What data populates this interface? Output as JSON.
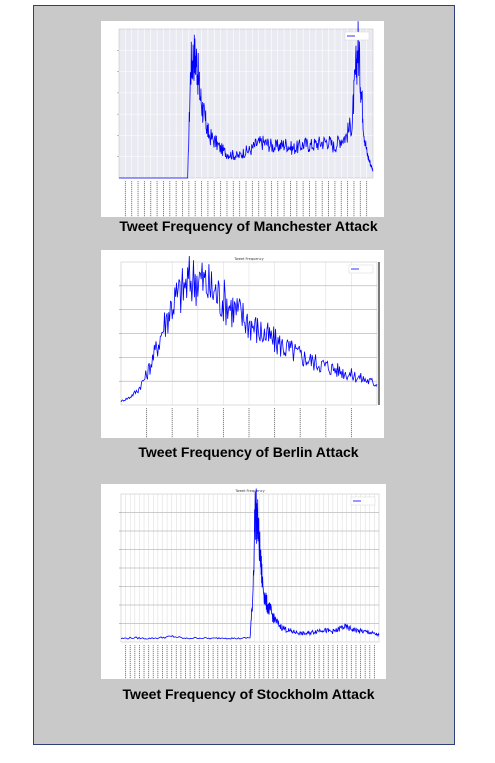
{
  "figure": {
    "captions": [
      "Tweet Frequency of Manchester Attack",
      "Tweet Frequency of Berlin Attack",
      "Tweet Frequency of Stockholm Attack"
    ]
  },
  "chart_data": [
    {
      "type": "line",
      "title": "",
      "legend_position": "top-right",
      "line_color": "#0000ff",
      "background": "#eaeaf2",
      "grid": true,
      "ytick_count": 7,
      "xtick_count": 40,
      "x": [
        0,
        2,
        4,
        6,
        8,
        10,
        12,
        14,
        16,
        18,
        20,
        22,
        23,
        24,
        25,
        26,
        27,
        28,
        29,
        30,
        32,
        34,
        36,
        38,
        40,
        42,
        44,
        46,
        48,
        50,
        52,
        54,
        56,
        58,
        60,
        62,
        64,
        66,
        68,
        70,
        72,
        74,
        76,
        78,
        79,
        80,
        81,
        82,
        83,
        84,
        85
      ],
      "values": [
        0,
        0,
        0,
        0,
        0,
        0,
        0,
        0,
        0,
        0,
        0,
        0,
        0,
        360,
        400,
        380,
        280,
        220,
        180,
        140,
        120,
        95,
        80,
        75,
        70,
        85,
        90,
        110,
        115,
        110,
        100,
        105,
        110,
        95,
        100,
        110,
        105,
        110,
        115,
        120,
        100,
        125,
        135,
        180,
        320,
        430,
        300,
        150,
        80,
        50,
        25
      ]
    },
    {
      "type": "line",
      "title": "Tweet Frequency",
      "legend_position": "top-right",
      "line_color": "#0000ff",
      "background": "#ffffff",
      "grid": true,
      "ytick_count": 6,
      "xtick_count": 10,
      "x": [
        0,
        3,
        6,
        9,
        12,
        15,
        18,
        21,
        24,
        27,
        30,
        33,
        36,
        39,
        42,
        45,
        48,
        51,
        54,
        57,
        60,
        63,
        66,
        69,
        72,
        75,
        78,
        81,
        84,
        87,
        90
      ],
      "values": [
        5,
        10,
        20,
        40,
        70,
        105,
        135,
        150,
        165,
        170,
        160,
        150,
        140,
        130,
        120,
        110,
        100,
        92,
        85,
        78,
        72,
        66,
        60,
        56,
        52,
        48,
        44,
        40,
        36,
        32,
        28
      ]
    },
    {
      "type": "line",
      "title": "Tweet Frequency",
      "legend_position": "top-right",
      "line_color": "#0000ff",
      "background": "#ffffff",
      "grid": true,
      "ytick_count": 8,
      "xtick_count": 56,
      "x": [
        0,
        5,
        10,
        15,
        20,
        25,
        30,
        35,
        40,
        45,
        50,
        51,
        52,
        53,
        54,
        55,
        56,
        57,
        58,
        59,
        60,
        62,
        64,
        66,
        68,
        70,
        72,
        74,
        76,
        78,
        80,
        82,
        84,
        86,
        88,
        90,
        92,
        94,
        96,
        98,
        100
      ],
      "values": [
        5,
        6,
        5,
        6,
        8,
        5,
        6,
        5,
        6,
        5,
        6,
        60,
        190,
        170,
        120,
        80,
        60,
        50,
        45,
        35,
        30,
        22,
        18,
        15,
        14,
        12,
        12,
        14,
        16,
        18,
        16,
        15,
        17,
        22,
        20,
        18,
        16,
        15,
        14,
        12,
        10
      ]
    }
  ]
}
